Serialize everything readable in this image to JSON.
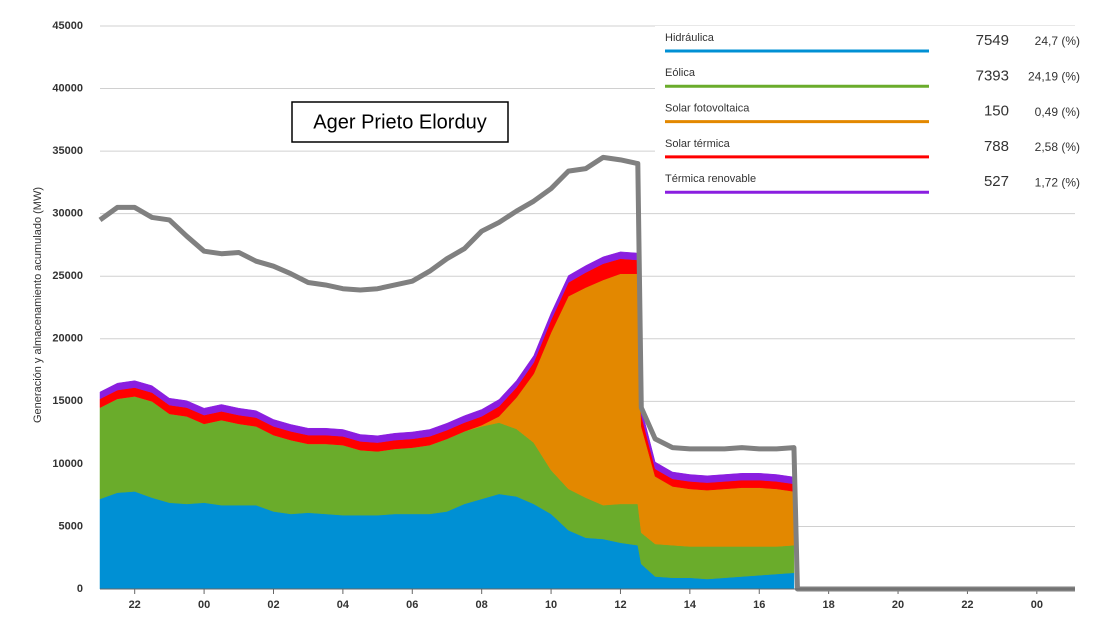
{
  "chart_data": {
    "type": "stacked_area_line",
    "title": "Ager Prieto Elorduy",
    "y_label": "Generación y almacenamiento acumulado (MW)",
    "x": [
      21,
      21.5,
      22,
      22.5,
      23,
      23.5,
      24,
      24.5,
      25,
      25.5,
      26,
      26.5,
      27,
      27.5,
      28,
      28.5,
      29,
      29.5,
      30,
      30.5,
      31,
      31.5,
      32,
      32.5,
      33,
      33.5,
      34,
      34.5,
      35,
      35.5,
      36,
      36.5,
      36.6,
      37,
      37.5,
      38,
      38.5,
      39,
      39.5,
      40,
      40.5,
      41,
      41.1,
      49.1
    ],
    "xlim": [
      21,
      49.1
    ],
    "xticks": [
      22,
      {
        "value": 24,
        "label": "00"
      },
      {
        "value": 26,
        "label": "02"
      },
      {
        "value": 28,
        "label": "04"
      },
      {
        "value": 30,
        "label": "06"
      },
      {
        "value": 32,
        "label": "08"
      },
      {
        "value": 34,
        "label": "10"
      },
      {
        "value": 36,
        "label": "12"
      },
      {
        "value": 38,
        "label": "14"
      },
      {
        "value": 40,
        "label": "16"
      },
      {
        "value": 42,
        "label": "18"
      },
      {
        "value": 44,
        "label": "20"
      },
      {
        "value": 46,
        "label": "22"
      },
      {
        "value": 48,
        "label": "00"
      }
    ],
    "ylim": [
      0,
      45000
    ],
    "yticks": [
      0,
      5000,
      10000,
      15000,
      20000,
      25000,
      30000,
      35000,
      40000,
      45000
    ],
    "grid": true,
    "series": [
      {
        "name": "Hidráulica",
        "color": "#0090d4",
        "current": 7549,
        "share": "24,7 (%)",
        "values": [
          7200,
          7700,
          7800,
          7300,
          6900,
          6800,
          6900,
          6700,
          6700,
          6700,
          6200,
          6000,
          6100,
          6000,
          5900,
          5900,
          5900,
          6000,
          6000,
          6000,
          6200,
          6800,
          7200,
          7600,
          7400,
          6800,
          6000,
          4700,
          4100,
          4000,
          3700,
          3500,
          2000,
          1000,
          900,
          900,
          800,
          900,
          1000,
          1100,
          1200,
          1300,
          null,
          null
        ]
      },
      {
        "name": "Eólica",
        "color": "#6aac2b",
        "current": 7393,
        "share": "24,19 (%)",
        "values": [
          7300,
          7500,
          7600,
          7700,
          7100,
          7000,
          6300,
          6800,
          6500,
          6300,
          6100,
          5900,
          5500,
          5600,
          5600,
          5200,
          5100,
          5200,
          5300,
          5500,
          5800,
          5800,
          5800,
          5700,
          5400,
          4900,
          3500,
          3300,
          3200,
          2700,
          3100,
          3300,
          2500,
          2600,
          2600,
          2500,
          2600,
          2500,
          2400,
          2300,
          2200,
          2200,
          null,
          null
        ]
      },
      {
        "name": "Solar fotovoltaica",
        "color": "#e38800",
        "current": 150,
        "share": "0,49 (%)",
        "values": [
          0,
          0,
          0,
          0,
          0,
          0,
          0,
          0,
          0,
          0,
          0,
          0,
          0,
          0,
          0,
          0,
          0,
          0,
          0,
          0,
          0,
          0,
          100,
          500,
          2500,
          5500,
          11000,
          15400,
          16800,
          18000,
          18400,
          18400,
          8500,
          5400,
          4700,
          4600,
          4500,
          4600,
          4700,
          4700,
          4600,
          4300,
          null,
          null
        ]
      },
      {
        "name": "Solar térmica",
        "color": "#ff0000",
        "current": 788,
        "share": "2,58 (%)",
        "values": [
          700,
          700,
          700,
          700,
          700,
          700,
          700,
          700,
          700,
          700,
          700,
          700,
          700,
          700,
          700,
          700,
          700,
          700,
          700,
          700,
          700,
          700,
          700,
          800,
          800,
          900,
          1000,
          1100,
          1200,
          1300,
          1200,
          1100,
          900,
          600,
          600,
          600,
          600,
          600,
          600,
          600,
          600,
          600,
          null,
          null
        ]
      },
      {
        "name": "Térmica renovable",
        "color": "#8a1ee0",
        "current": 527,
        "share": "1,72 (%)",
        "values": [
          550,
          550,
          550,
          550,
          550,
          550,
          550,
          550,
          550,
          550,
          550,
          550,
          550,
          550,
          550,
          550,
          550,
          550,
          550,
          550,
          550,
          550,
          550,
          550,
          550,
          550,
          550,
          550,
          550,
          550,
          550,
          550,
          550,
          550,
          550,
          550,
          550,
          550,
          550,
          550,
          550,
          550,
          null,
          null
        ]
      }
    ],
    "line_series": {
      "color": "#808080",
      "values": [
        29500,
        30500,
        30500,
        29700,
        29500,
        28200,
        27000,
        26800,
        26900,
        26200,
        25800,
        25200,
        24500,
        24300,
        24000,
        23900,
        24000,
        24300,
        24600,
        25400,
        26400,
        27200,
        28600,
        29300,
        30200,
        31000,
        32000,
        33400,
        33600,
        34500,
        34300,
        34000,
        14500,
        12000,
        11300,
        11200,
        11200,
        11200,
        11300,
        11200,
        11200,
        11300,
        0,
        0
      ]
    }
  }
}
